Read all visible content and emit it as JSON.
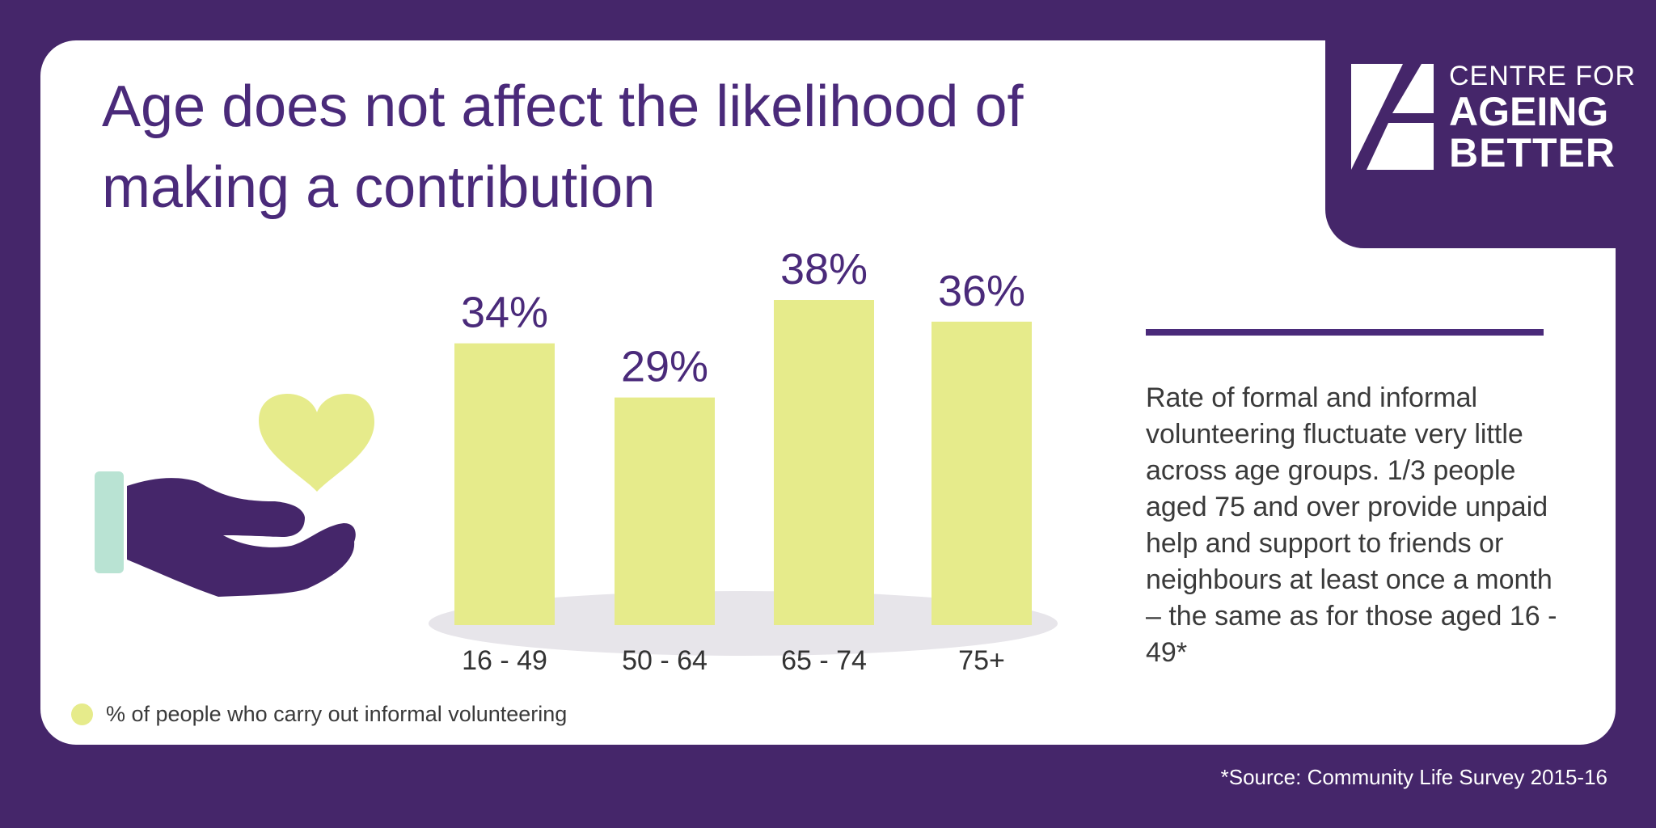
{
  "title_lines": [
    "Age does not affect the likelihood of",
    "making a contribution"
  ],
  "logo": {
    "line1": "CENTRE FOR",
    "line2": "AGEING",
    "line3": "BETTER"
  },
  "chart_data": {
    "type": "bar",
    "title": "Age does not affect the likelihood of making a contribution",
    "categories": [
      "16 - 49",
      "50 - 64",
      "65 - 74",
      "75+"
    ],
    "values": [
      34,
      29,
      38,
      36
    ],
    "value_labels": [
      "34%",
      "29%",
      "38%",
      "36%"
    ],
    "legend": "% of people who carry out informal volunteering",
    "legend_placement": "bottom-left",
    "grid": false,
    "bar_color": "#e6eb8b",
    "label_color": "#4a2a7a"
  },
  "description": "Rate of formal and informal volunteering fluctuate very little across age groups. 1/3 people aged 75 and over provide unpaid help and support to friends or neighbours at least once a month – the same as for those aged 16 - 49*",
  "source": "*Source: Community Life Survey 2015-16",
  "colors": {
    "background": "#45266a",
    "accent": "#4a2a7a",
    "mint": "#b9e3d3",
    "bar": "#e6eb8b"
  },
  "icons": [
    "hand-icon",
    "heart-icon",
    "logo-mark-icon"
  ]
}
